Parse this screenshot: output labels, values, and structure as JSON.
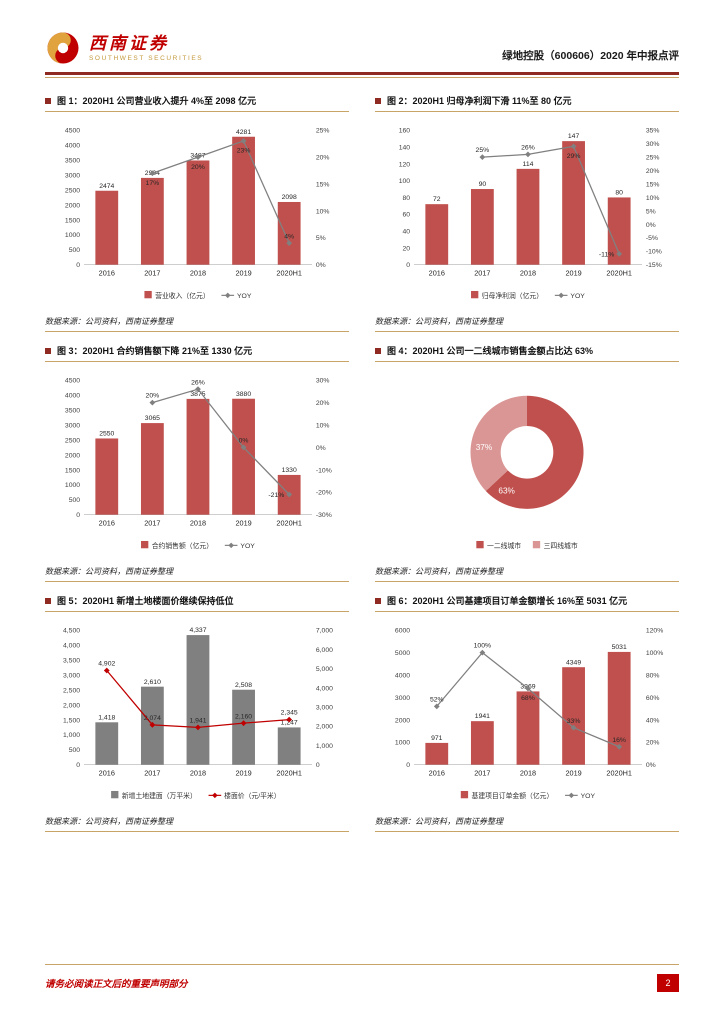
{
  "header": {
    "brand_cn": "西南证券",
    "brand_en": "SOUTHWEST SECURITIES",
    "report_title": "绿地控股（600606）2020 年中报点评"
  },
  "footer": {
    "disclaimer": "请务必阅读正文后的重要声明部分",
    "page_number": "2"
  },
  "palette": {
    "brand_red": "#c00000",
    "rule_dark_red": "#8e2a21",
    "gold": "#c9a468",
    "bar_red": "#c0504d",
    "line_gray": "#808080",
    "donut_light": "#d99694"
  },
  "chart_data": [
    {
      "type": "bar",
      "title": "图 1：2020H1 公司营业收入提升 4%至 2098 亿元",
      "source": "数据来源：公司资料，西南证券整理",
      "categories": [
        "2016",
        "2017",
        "2018",
        "2019",
        "2020H1"
      ],
      "bars": {
        "name": "营业收入（亿元）",
        "color": "#c0504d",
        "values": [
          2474,
          2904,
          3487,
          4281,
          2098
        ]
      },
      "line": {
        "name": "YOY",
        "color": "#808080",
        "percent": true,
        "values": [
          null,
          17,
          20,
          23,
          4
        ]
      },
      "left_axis": {
        "min": 0,
        "max": 4500,
        "step": 500
      },
      "right_axis": {
        "min": 0,
        "max": 25,
        "step": 5,
        "percent": true
      },
      "legend_position": "bottom",
      "grid": false
    },
    {
      "type": "bar",
      "title": "图 2：2020H1 归母净利润下滑 11%至 80 亿元",
      "source": "数据来源：公司资料，西南证券整理",
      "categories": [
        "2016",
        "2017",
        "2018",
        "2019",
        "2020H1"
      ],
      "bars": {
        "name": "归母净利润（亿元）",
        "color": "#c0504d",
        "values": [
          72,
          90,
          114,
          147,
          80
        ]
      },
      "line": {
        "name": "YOY",
        "color": "#808080",
        "percent": true,
        "values": [
          null,
          25,
          26,
          29,
          -11
        ]
      },
      "left_axis": {
        "min": 0,
        "max": 160,
        "step": 20
      },
      "right_axis": {
        "min": -15,
        "max": 35,
        "step": 5,
        "percent": true
      },
      "legend_position": "bottom",
      "grid": false
    },
    {
      "type": "bar",
      "title": "图 3：2020H1 合约销售额下降 21%至 1330 亿元",
      "source": "数据来源：公司资料，西南证券整理",
      "categories": [
        "2016",
        "2017",
        "2018",
        "2019",
        "2020H1"
      ],
      "bars": {
        "name": "合约销售额（亿元）",
        "color": "#c0504d",
        "values": [
          2550,
          3065,
          3875,
          3880,
          1330
        ]
      },
      "line": {
        "name": "YOY",
        "color": "#808080",
        "percent": true,
        "values": [
          null,
          20,
          26,
          0,
          -21
        ]
      },
      "left_axis": {
        "min": 0,
        "max": 4500,
        "step": 500
      },
      "right_axis": {
        "min": -30,
        "max": 30,
        "step": 10,
        "percent": true
      },
      "legend_position": "bottom",
      "grid": false
    },
    {
      "type": "pie",
      "title": "图 4：2020H1 公司一二线城市销售金额占比达 63%",
      "source": "数据来源：公司资料，西南证券整理",
      "slices": [
        {
          "name": "一二线城市",
          "value": 63,
          "label": "63%",
          "color": "#c0504d"
        },
        {
          "name": "三四线城市",
          "value": 37,
          "label": "37%",
          "color": "#d99694"
        }
      ],
      "label_angles_deg": [
        118,
        187
      ],
      "legend_position": "bottom"
    },
    {
      "type": "bar",
      "title": "图 5：2020H1 新增土地楼面价继续保持低位",
      "source": "数据来源：公司资料，西南证券整理",
      "categories": [
        "2016",
        "2017",
        "2018",
        "2019",
        "2020H1"
      ],
      "bars": {
        "name": "新增土地建面（万平米）",
        "color": "#808080",
        "comma": true,
        "values": [
          1418,
          2610,
          4337,
          2508,
          1247
        ]
      },
      "line": {
        "name": "楼面价（元/平米）",
        "color": "#c00000",
        "percent": false,
        "values": [
          4902,
          2074,
          1941,
          2160,
          2345
        ]
      },
      "left_axis": {
        "min": 0,
        "max": 4500,
        "step": 500,
        "comma": true
      },
      "right_axis": {
        "min": 0,
        "max": 7000,
        "step": 1000,
        "comma": true
      },
      "legend_position": "bottom",
      "grid": false
    },
    {
      "type": "bar",
      "title": "图 6：2020H1 公司基建项目订单金额增长 16%至 5031 亿元",
      "source": "数据来源：公司资料，西南证券整理",
      "categories": [
        "2016",
        "2017",
        "2018",
        "2019",
        "2020H1"
      ],
      "bars": {
        "name": "基建项目订单金额（亿元）",
        "color": "#c0504d",
        "values": [
          971,
          1941,
          3269,
          4349,
          5031
        ]
      },
      "line": {
        "name": "YOY",
        "color": "#808080",
        "percent": true,
        "values": [
          52,
          100,
          68,
          33,
          16
        ]
      },
      "left_axis": {
        "min": 0,
        "max": 6000,
        "step": 1000
      },
      "right_axis": {
        "min": 0,
        "max": 120,
        "step": 20,
        "percent": true
      },
      "legend_position": "bottom",
      "grid": false
    }
  ]
}
